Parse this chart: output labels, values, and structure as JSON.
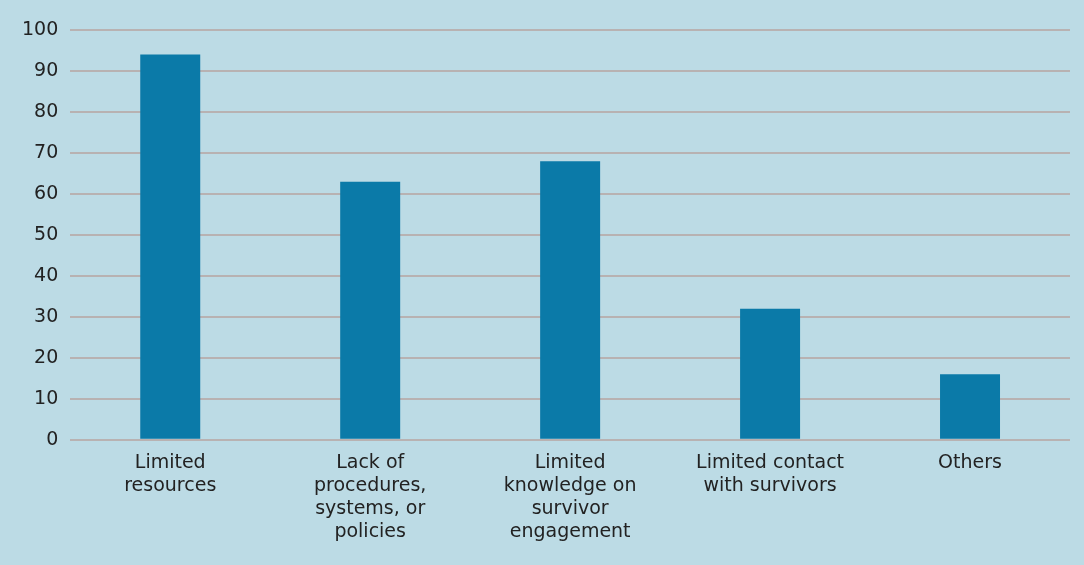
{
  "chart_data": {
    "type": "bar",
    "categories": [
      "Limited resources",
      "Lack of procedures, systems, or policies",
      "Limited knowledge on survivor engagement",
      "Limited contact with survivors",
      "Others"
    ],
    "values": [
      94,
      63,
      68,
      32,
      16
    ],
    "color": "#0b7aa8",
    "ylim": [
      0,
      100
    ],
    "yticks": [
      0,
      10,
      20,
      30,
      40,
      50,
      60,
      70,
      80,
      90,
      100
    ],
    "grid": "y",
    "legend": false
  }
}
